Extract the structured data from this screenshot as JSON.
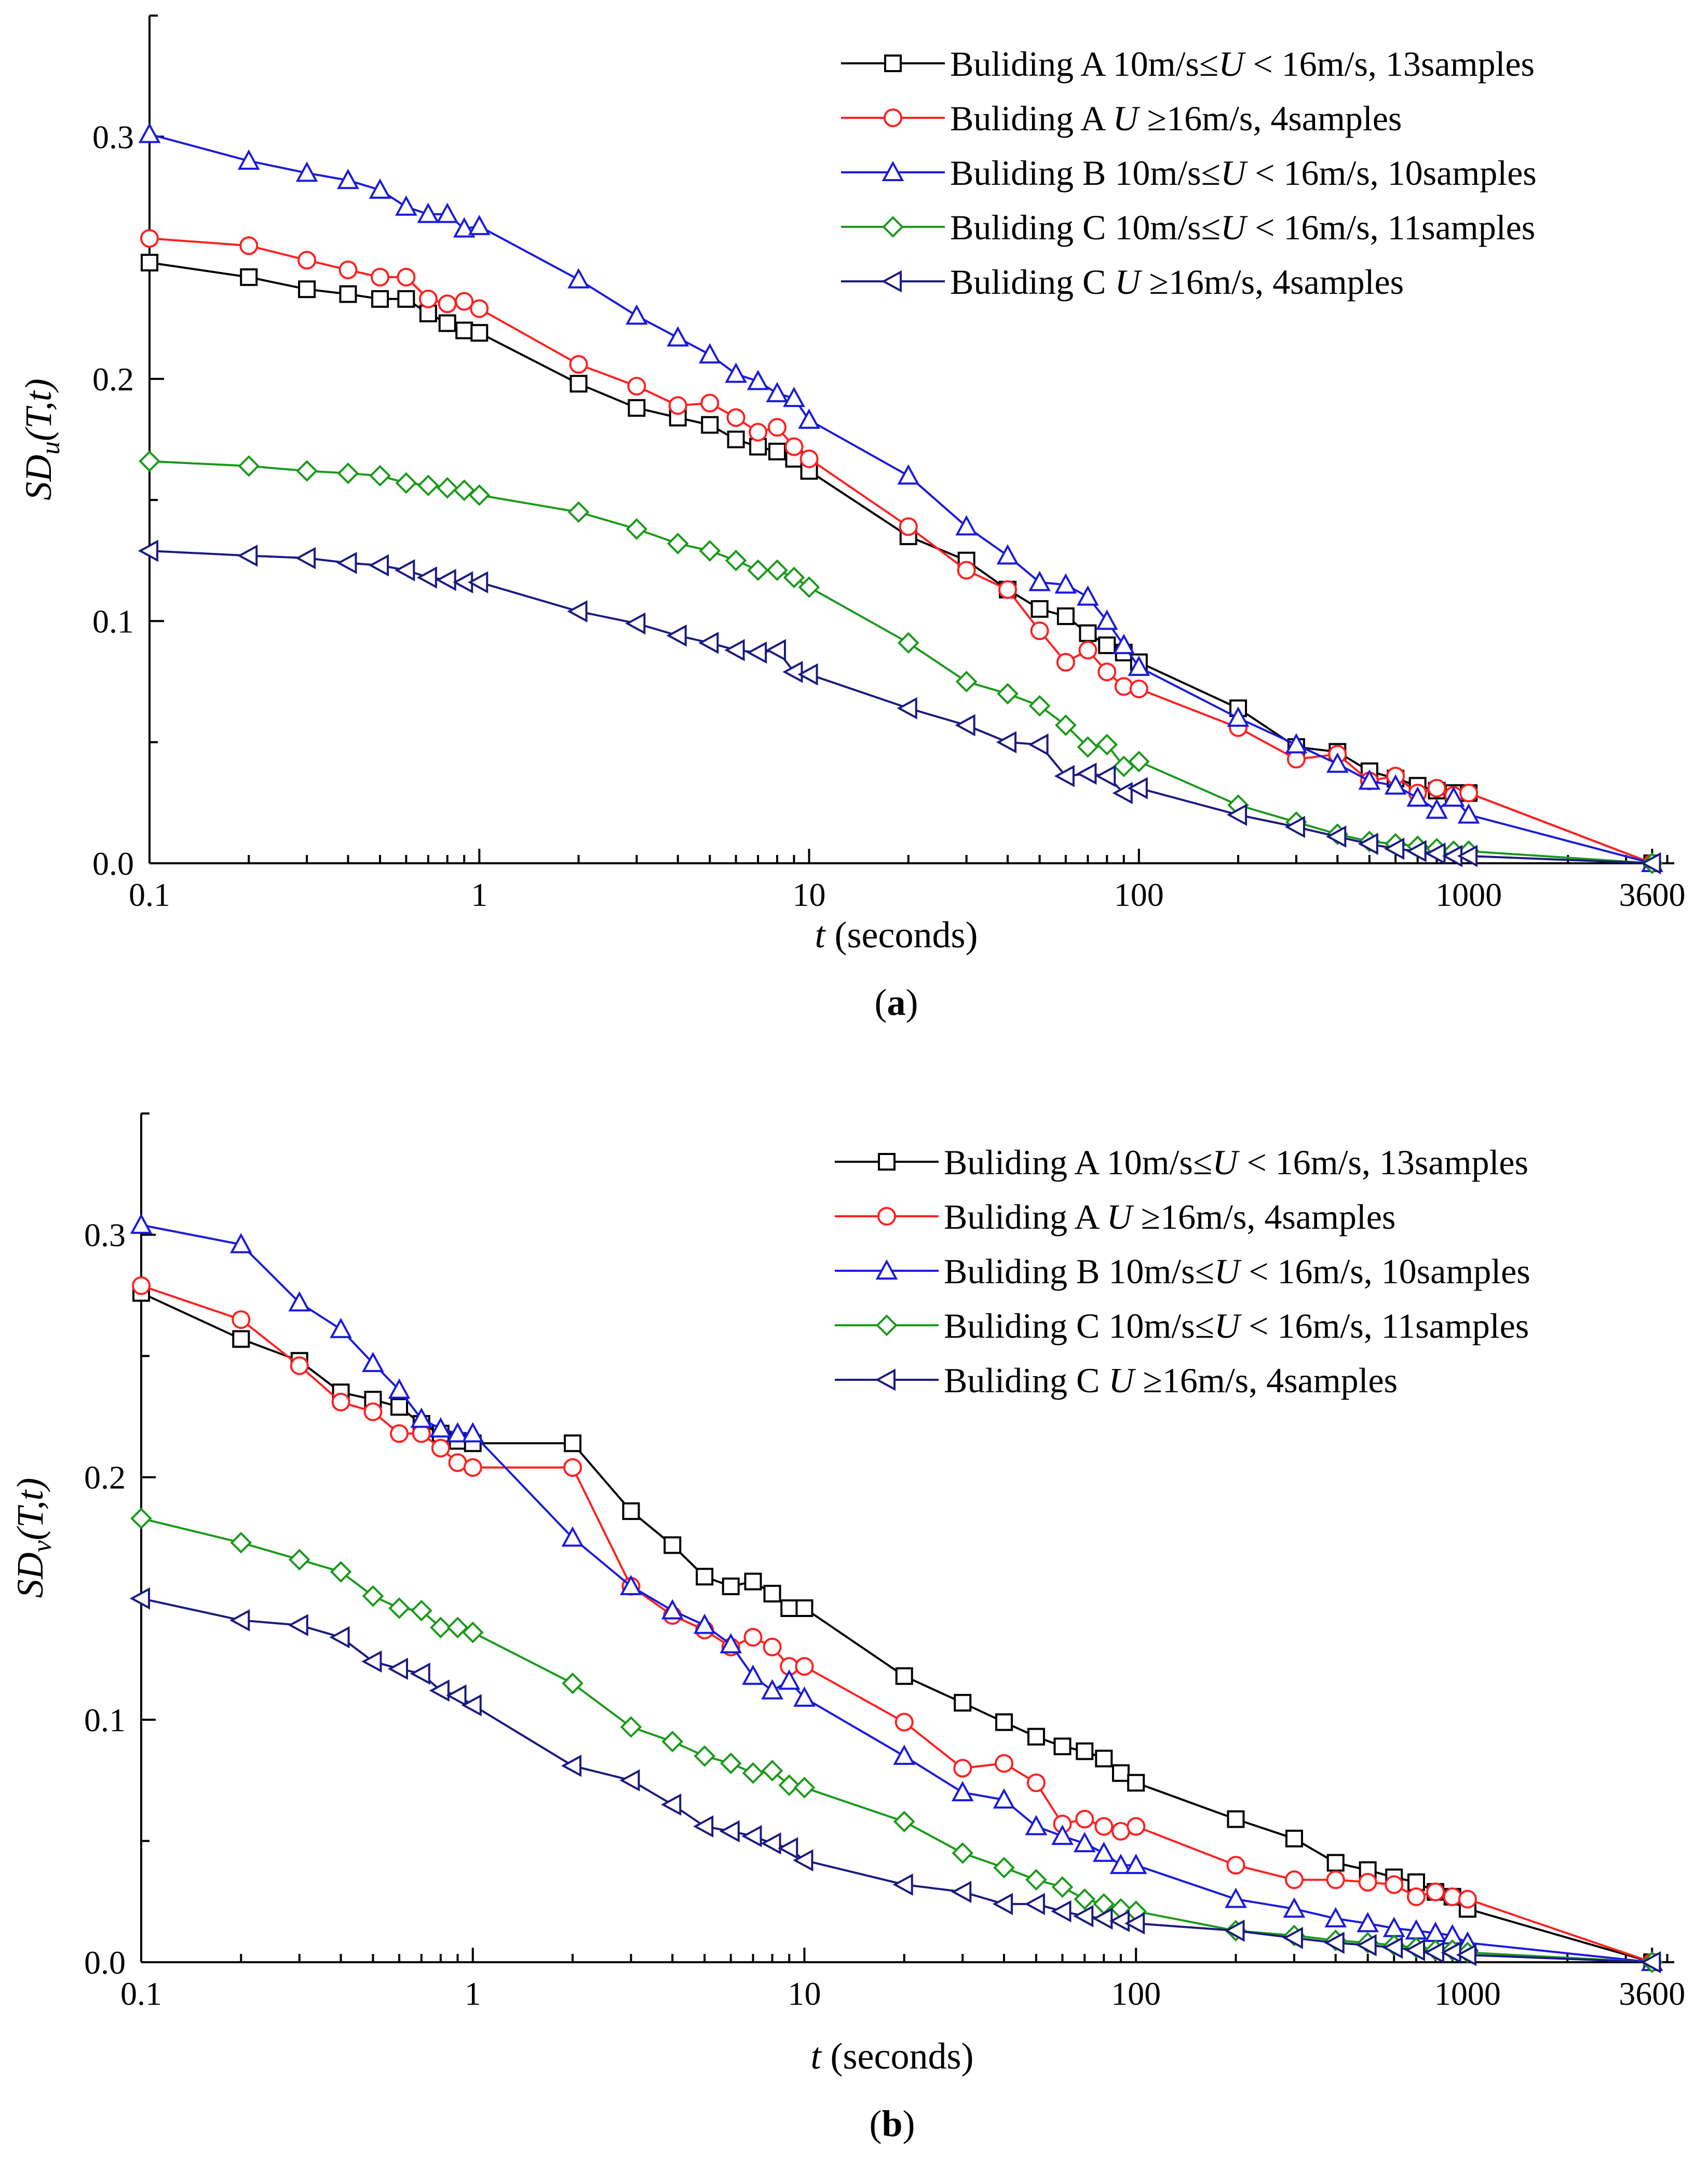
{
  "chart_data": [
    {
      "type": "line",
      "panel_label": "a",
      "xlabel": "t (seconds)",
      "ylabel": "SD_u(T,t)",
      "ylabel_parts": {
        "main": "SD",
        "sub": "u",
        "args": "(T,t)"
      },
      "xscale": "log",
      "xlim": [
        0.1,
        4200
      ],
      "ylim": [
        0,
        0.35
      ],
      "xticks": [
        0.1,
        1,
        10,
        100,
        1000,
        3600
      ],
      "xtick_labels": [
        "0.1",
        "1",
        "10",
        "100",
        "1000",
        "3600"
      ],
      "yticks": [
        0.0,
        0.1,
        0.2,
        0.3
      ],
      "ytick_labels": [
        "0.0",
        "0.1",
        "0.2",
        "0.3"
      ],
      "legend_position": "top-right",
      "series": [
        {
          "name": "Buliding A 10m/s≤U < 16m/s, 13samples",
          "legend": {
            "pre": "Buliding A 10m/s≤",
            "u": "U",
            "post": " < 16m/s, 13samples"
          },
          "color": "#000000",
          "marker": "square",
          "x": [
            0.1,
            0.2,
            0.3,
            0.4,
            0.5,
            0.6,
            0.7,
            0.8,
            0.9,
            1,
            2,
            3,
            4,
            5,
            6,
            7,
            8,
            9,
            10,
            20,
            30,
            40,
            50,
            60,
            70,
            80,
            90,
            100,
            200,
            300,
            400,
            500,
            600,
            700,
            800,
            900,
            1000,
            3600
          ],
          "y": [
            0.248,
            0.242,
            0.237,
            0.235,
            0.233,
            0.233,
            0.227,
            0.223,
            0.22,
            0.219,
            0.198,
            0.188,
            0.184,
            0.181,
            0.175,
            0.172,
            0.17,
            0.167,
            0.162,
            0.135,
            0.125,
            0.113,
            0.105,
            0.102,
            0.095,
            0.09,
            0.087,
            0.083,
            0.064,
            0.048,
            0.046,
            0.038,
            0.035,
            0.032,
            0.03,
            0.029,
            0.029,
            0.0
          ]
        },
        {
          "name": "Buliding A U ≥16m/s, 4samples",
          "legend": {
            "pre": "Buliding A ",
            "u": "U",
            "post": " ≥16m/s, 4samples"
          },
          "color": "#ff2020",
          "marker": "circle",
          "x": [
            0.1,
            0.2,
            0.3,
            0.4,
            0.5,
            0.6,
            0.7,
            0.8,
            0.9,
            1,
            2,
            3,
            4,
            5,
            6,
            7,
            8,
            9,
            10,
            20,
            30,
            40,
            50,
            60,
            70,
            80,
            90,
            100,
            200,
            300,
            400,
            500,
            600,
            700,
            800,
            900,
            1000,
            3600
          ],
          "y": [
            0.258,
            0.255,
            0.249,
            0.245,
            0.242,
            0.242,
            0.233,
            0.231,
            0.232,
            0.229,
            0.206,
            0.197,
            0.189,
            0.19,
            0.184,
            0.178,
            0.18,
            0.172,
            0.167,
            0.139,
            0.121,
            0.113,
            0.096,
            0.083,
            0.088,
            0.079,
            0.073,
            0.072,
            0.056,
            0.043,
            0.045,
            0.034,
            0.036,
            0.029,
            0.031,
            0.028,
            0.029,
            0.0
          ]
        },
        {
          "name": "Buliding B 10m/s≤U < 16m/s, 10samples",
          "legend": {
            "pre": "Buliding B 10m/s≤",
            "u": "U",
            "post": " < 16m/s, 10samples"
          },
          "color": "#1a1adc",
          "marker": "triangle-up",
          "x": [
            0.1,
            0.2,
            0.3,
            0.4,
            0.5,
            0.6,
            0.7,
            0.8,
            0.9,
            1,
            2,
            3,
            4,
            5,
            6,
            7,
            8,
            9,
            10,
            20,
            30,
            40,
            50,
            60,
            70,
            80,
            90,
            100,
            200,
            300,
            400,
            500,
            600,
            700,
            800,
            900,
            1000,
            3600
          ],
          "y": [
            0.301,
            0.29,
            0.285,
            0.282,
            0.278,
            0.271,
            0.268,
            0.268,
            0.262,
            0.263,
            0.241,
            0.226,
            0.217,
            0.21,
            0.202,
            0.199,
            0.194,
            0.192,
            0.183,
            0.16,
            0.139,
            0.127,
            0.116,
            0.115,
            0.11,
            0.1,
            0.09,
            0.081,
            0.06,
            0.049,
            0.041,
            0.034,
            0.032,
            0.027,
            0.022,
            0.027,
            0.02,
            0.0
          ]
        },
        {
          "name": "Buliding C 10m/s≤U < 16m/s, 11samples",
          "legend": {
            "pre": "Buliding C 10m/s≤",
            "u": "U",
            "post": " < 16m/s, 11samples"
          },
          "color": "#1a9a1a",
          "marker": "diamond",
          "x": [
            0.1,
            0.2,
            0.3,
            0.4,
            0.5,
            0.6,
            0.7,
            0.8,
            0.9,
            1,
            2,
            3,
            4,
            5,
            6,
            7,
            8,
            9,
            10,
            20,
            30,
            40,
            50,
            60,
            70,
            80,
            90,
            100,
            200,
            300,
            400,
            500,
            600,
            700,
            800,
            900,
            1000,
            3600
          ],
          "y": [
            0.166,
            0.164,
            0.162,
            0.161,
            0.16,
            0.157,
            0.156,
            0.155,
            0.154,
            0.152,
            0.145,
            0.138,
            0.132,
            0.129,
            0.125,
            0.121,
            0.121,
            0.118,
            0.114,
            0.091,
            0.075,
            0.07,
            0.065,
            0.057,
            0.048,
            0.049,
            0.04,
            0.042,
            0.024,
            0.017,
            0.012,
            0.009,
            0.008,
            0.007,
            0.006,
            0.005,
            0.005,
            0.0
          ]
        },
        {
          "name": "Buliding C U ≥16m/s, 4samples",
          "legend": {
            "pre": "Buliding C ",
            "u": "U",
            "post": " ≥16m/s, 4samples"
          },
          "color": "#1a1a80",
          "marker": "triangle-left",
          "x": [
            0.1,
            0.2,
            0.3,
            0.4,
            0.5,
            0.6,
            0.7,
            0.8,
            0.9,
            1,
            2,
            3,
            4,
            5,
            6,
            7,
            8,
            9,
            10,
            20,
            30,
            40,
            50,
            60,
            70,
            80,
            90,
            100,
            200,
            300,
            400,
            500,
            600,
            700,
            800,
            900,
            1000,
            3600
          ],
          "y": [
            0.129,
            0.127,
            0.126,
            0.124,
            0.123,
            0.121,
            0.118,
            0.117,
            0.116,
            0.116,
            0.104,
            0.099,
            0.094,
            0.091,
            0.088,
            0.087,
            0.088,
            0.079,
            0.078,
            0.064,
            0.057,
            0.05,
            0.049,
            0.036,
            0.037,
            0.036,
            0.029,
            0.031,
            0.02,
            0.015,
            0.011,
            0.008,
            0.006,
            0.005,
            0.004,
            0.003,
            0.003,
            0.0
          ]
        }
      ]
    },
    {
      "type": "line",
      "panel_label": "b",
      "xlabel": "t (seconds)",
      "ylabel": "SD_v(T,t)",
      "ylabel_parts": {
        "main": "SD",
        "sub": "v",
        "args": "(T,t)"
      },
      "xscale": "log",
      "xlim": [
        0.1,
        4200
      ],
      "ylim": [
        0,
        0.35
      ],
      "xticks": [
        0.1,
        1,
        10,
        100,
        1000,
        3600
      ],
      "xtick_labels": [
        "0.1",
        "1",
        "10",
        "100",
        "1000",
        "3600"
      ],
      "yticks": [
        0.0,
        0.1,
        0.2,
        0.3
      ],
      "ytick_labels": [
        "0.0",
        "0.1",
        "0.2",
        "0.3"
      ],
      "legend_position": "top-right",
      "series": [
        {
          "name": "Buliding A 10m/s≤U < 16m/s, 13samples",
          "legend": {
            "pre": "Buliding A 10m/s≤",
            "u": "U",
            "post": " < 16m/s, 13samples"
          },
          "color": "#000000",
          "marker": "square",
          "x": [
            0.1,
            0.2,
            0.3,
            0.4,
            0.5,
            0.6,
            0.7,
            0.8,
            0.9,
            1,
            2,
            3,
            4,
            5,
            6,
            7,
            8,
            9,
            10,
            20,
            30,
            40,
            50,
            60,
            70,
            80,
            90,
            100,
            200,
            300,
            400,
            500,
            600,
            700,
            800,
            900,
            1000,
            3600
          ],
          "y": [
            0.276,
            0.257,
            0.248,
            0.235,
            0.232,
            0.229,
            0.222,
            0.218,
            0.215,
            0.214,
            0.214,
            0.186,
            0.172,
            0.159,
            0.155,
            0.157,
            0.152,
            0.146,
            0.146,
            0.118,
            0.107,
            0.099,
            0.093,
            0.089,
            0.087,
            0.084,
            0.078,
            0.074,
            0.059,
            0.051,
            0.041,
            0.038,
            0.035,
            0.033,
            0.029,
            0.027,
            0.022,
            0.0
          ]
        },
        {
          "name": "Buliding A U ≥16m/s, 4samples",
          "legend": {
            "pre": "Buliding A ",
            "u": "U",
            "post": " ≥16m/s, 4samples"
          },
          "color": "#ff2020",
          "marker": "circle",
          "x": [
            0.1,
            0.2,
            0.3,
            0.4,
            0.5,
            0.6,
            0.7,
            0.8,
            0.9,
            1,
            2,
            3,
            4,
            5,
            6,
            7,
            8,
            9,
            10,
            20,
            30,
            40,
            50,
            60,
            70,
            80,
            90,
            100,
            200,
            300,
            400,
            500,
            600,
            700,
            800,
            900,
            1000,
            3600
          ],
          "y": [
            0.279,
            0.265,
            0.246,
            0.231,
            0.227,
            0.218,
            0.218,
            0.212,
            0.206,
            0.204,
            0.204,
            0.155,
            0.143,
            0.137,
            0.13,
            0.134,
            0.13,
            0.122,
            0.122,
            0.099,
            0.08,
            0.082,
            0.074,
            0.057,
            0.059,
            0.056,
            0.054,
            0.056,
            0.04,
            0.034,
            0.034,
            0.033,
            0.032,
            0.027,
            0.029,
            0.027,
            0.026,
            0.0
          ]
        },
        {
          "name": "Buliding B 10m/s≤U < 16m/s, 10samples",
          "legend": {
            "pre": "Buliding B 10m/s≤",
            "u": "U",
            "post": " < 16m/s, 10samples"
          },
          "color": "#1a1adc",
          "marker": "triangle-up",
          "x": [
            0.1,
            0.2,
            0.3,
            0.4,
            0.5,
            0.6,
            0.7,
            0.8,
            0.9,
            1,
            2,
            3,
            4,
            5,
            6,
            7,
            8,
            9,
            10,
            20,
            30,
            40,
            50,
            60,
            70,
            80,
            90,
            100,
            200,
            300,
            400,
            500,
            600,
            700,
            800,
            900,
            1000,
            3600
          ],
          "y": [
            0.304,
            0.296,
            0.272,
            0.261,
            0.247,
            0.236,
            0.224,
            0.22,
            0.218,
            0.218,
            0.175,
            0.155,
            0.145,
            0.139,
            0.131,
            0.118,
            0.112,
            0.116,
            0.109,
            0.085,
            0.07,
            0.067,
            0.056,
            0.052,
            0.049,
            0.045,
            0.04,
            0.04,
            0.026,
            0.022,
            0.018,
            0.016,
            0.014,
            0.013,
            0.012,
            0.011,
            0.008,
            0.0
          ]
        },
        {
          "name": "Buliding C 10m/s≤U < 16m/s, 11samples",
          "legend": {
            "pre": "Buliding C 10m/s≤",
            "u": "U",
            "post": " < 16m/s, 11samples"
          },
          "color": "#1a9a1a",
          "marker": "diamond",
          "x": [
            0.1,
            0.2,
            0.3,
            0.4,
            0.5,
            0.6,
            0.7,
            0.8,
            0.9,
            1,
            2,
            3,
            4,
            5,
            6,
            7,
            8,
            9,
            10,
            20,
            30,
            40,
            50,
            60,
            70,
            80,
            90,
            100,
            200,
            300,
            400,
            500,
            600,
            700,
            800,
            900,
            1000,
            3600
          ],
          "y": [
            0.183,
            0.173,
            0.166,
            0.161,
            0.151,
            0.146,
            0.145,
            0.138,
            0.138,
            0.136,
            0.115,
            0.097,
            0.091,
            0.085,
            0.082,
            0.078,
            0.079,
            0.073,
            0.072,
            0.058,
            0.045,
            0.039,
            0.034,
            0.031,
            0.026,
            0.024,
            0.022,
            0.021,
            0.013,
            0.011,
            0.009,
            0.008,
            0.007,
            0.006,
            0.005,
            0.005,
            0.004,
            0.0
          ]
        },
        {
          "name": "Buliding C U ≥16m/s, 4samples",
          "legend": {
            "pre": "Buliding C ",
            "u": "U",
            "post": " ≥16m/s, 4samples"
          },
          "color": "#1a1a80",
          "marker": "triangle-left",
          "x": [
            0.1,
            0.2,
            0.3,
            0.4,
            0.5,
            0.6,
            0.7,
            0.8,
            0.9,
            1,
            2,
            3,
            4,
            5,
            6,
            7,
            8,
            9,
            10,
            20,
            30,
            40,
            50,
            60,
            70,
            80,
            90,
            100,
            200,
            300,
            400,
            500,
            600,
            700,
            800,
            900,
            1000,
            3600
          ],
          "y": [
            0.15,
            0.141,
            0.139,
            0.134,
            0.124,
            0.121,
            0.119,
            0.112,
            0.11,
            0.106,
            0.081,
            0.075,
            0.065,
            0.056,
            0.054,
            0.052,
            0.049,
            0.047,
            0.042,
            0.032,
            0.029,
            0.024,
            0.024,
            0.021,
            0.019,
            0.018,
            0.017,
            0.016,
            0.013,
            0.01,
            0.008,
            0.007,
            0.006,
            0.005,
            0.004,
            0.004,
            0.003,
            0.0
          ]
        }
      ]
    }
  ]
}
